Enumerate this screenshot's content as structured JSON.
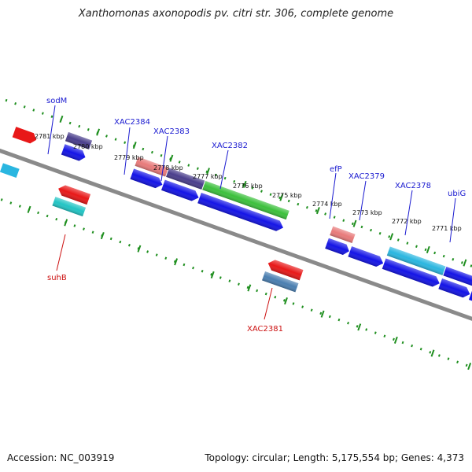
{
  "title": "Xanthomonas axonopodis pv. citri str. 306, complete genome",
  "footer": {
    "accession": "Accession: NC_003919",
    "summary": "Topology: circular; Length: 5,175,554 bp; Genes: 4,373"
  },
  "colors": {
    "backbone": "#8a8a8a",
    "dotted_ring": "#1f8f1f",
    "forward_label": "#1a1ad0",
    "reverse_label": "#cc1010"
  },
  "ticks": [
    {
      "label": "2781 kbp"
    },
    {
      "label": "2780 kbp"
    },
    {
      "label": "2779 kbp"
    },
    {
      "label": "2778 kbp"
    },
    {
      "label": "2777 kbp"
    },
    {
      "label": "2776 kbp"
    },
    {
      "label": "2775 kbp"
    },
    {
      "label": "2774 kbp"
    },
    {
      "label": "2773 kbp"
    },
    {
      "label": "2772 kbp"
    },
    {
      "label": "2771 kbp"
    }
  ],
  "forward_genes": [
    {
      "label": "sodM"
    },
    {
      "label": "XAC2384"
    },
    {
      "label": "XAC2383"
    },
    {
      "label": "XAC2382"
    },
    {
      "label": "efP"
    },
    {
      "label": "XAC2379"
    },
    {
      "label": "XAC2378"
    },
    {
      "label": "ubiG"
    }
  ],
  "reverse_genes": [
    {
      "label": "suhB"
    },
    {
      "label": "XAC2381"
    }
  ],
  "feature_colors": {
    "cog_purple": "#4a3e8c",
    "cog_pink": "#e87a7a",
    "cog_green": "#3cc03c",
    "cog_cyan": "#2ab6e0",
    "cog_grey": "#b8b8b8",
    "cog_steel": "#4a7eb0",
    "cog_teal": "#22c4c4",
    "cds_blue": "#1414e6",
    "cds_red": "#e81818"
  }
}
